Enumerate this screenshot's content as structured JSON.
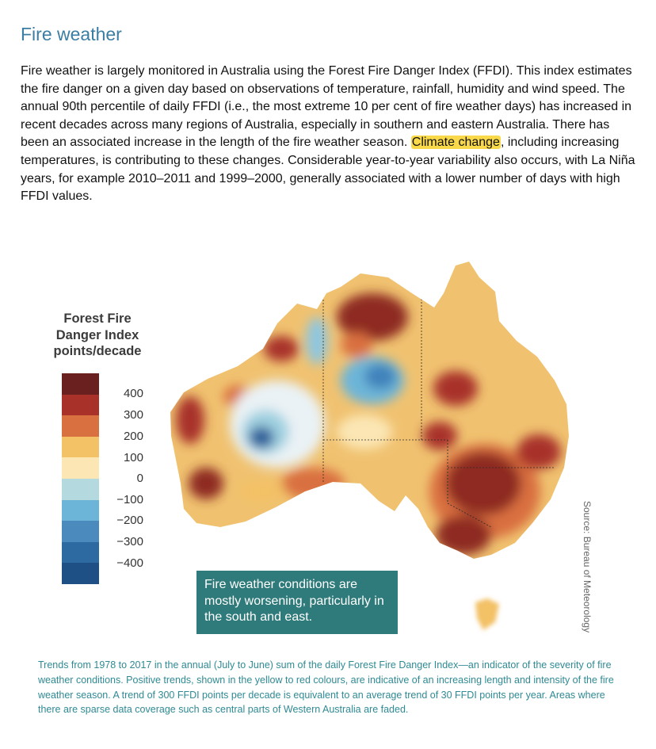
{
  "heading": "Fire weather",
  "paragraph": {
    "part1": "Fire weather is largely monitored in Australia using the Forest Fire Danger Index (FFDI). This index estimates the fire danger on a given day based on observations of temperature, rainfall, humidity and wind speed. The annual 90th percentile of daily FFDI (i.e., the most extreme 10 per cent of fire weather days) has increased in recent decades across many regions of Australia, especially in southern and eastern Australia. There has been an associated increase in the length of the fire weather season. ",
    "highlight": "Climate change",
    "part2": ", including increasing temperatures, is contributing to these changes. Considerable year-to-year variability also occurs, with La Niña years, for example 2010–2011 and 1999–2000, generally associated with a lower number of days with high FFDI values."
  },
  "legend": {
    "title_lines": [
      "Forest Fire",
      "Danger Index",
      "points/decade"
    ],
    "ticks": [
      "400",
      "300",
      "200",
      "100",
      "0",
      "−100",
      "−200",
      "−300",
      "−400"
    ],
    "colors": [
      "#6b2020",
      "#a8322a",
      "#d9703f",
      "#f3c166",
      "#fbe6b4",
      "#b4dae0",
      "#6db5d8",
      "#4a8abd",
      "#2d6aa1",
      "#1e4f85"
    ]
  },
  "callout": "Fire weather conditions are mostly worsening, particularly in the south and east.",
  "source": "Source: Bureau of Meteorology",
  "caption": "Trends from 1978 to 2017 in the annual (July to June) sum of the daily Forest Fire Danger Index—an indicator of the severity of fire weather conditions. Positive trends, shown in the yellow to red colours, are indicative of an increasing length and intensity of the fire weather season. A trend of 300 FFDI points per decade is equivalent to an average trend of 30 FFDI points per year. Areas where there are sparse data coverage such as central parts of Western Australia are faded."
}
